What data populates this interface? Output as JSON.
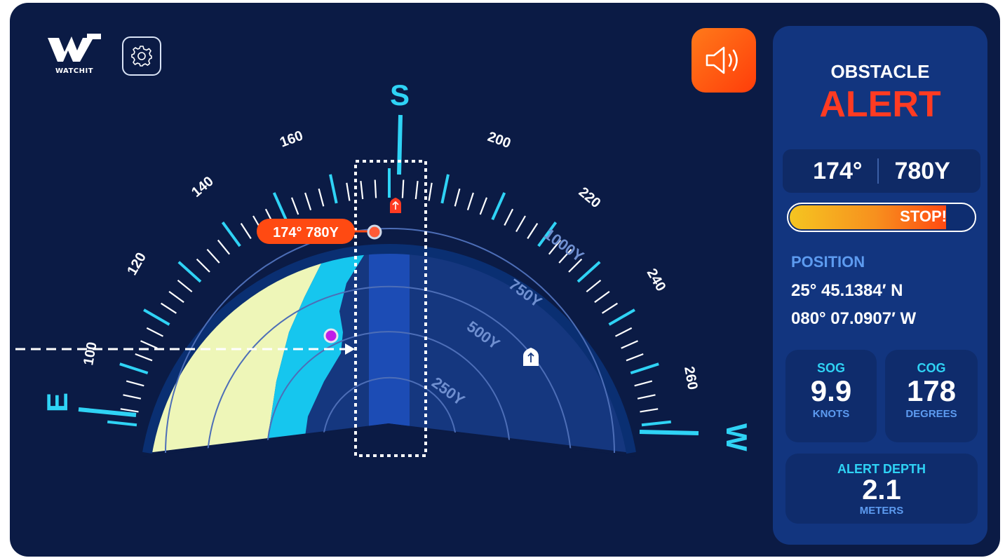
{
  "brand": {
    "logo_text": "WATCHIT"
  },
  "compass": {
    "cardinals": {
      "south": "S",
      "east": "E",
      "west": "W"
    },
    "tick_labels": [
      "100",
      "120",
      "140",
      "160",
      "200",
      "220",
      "240",
      "260"
    ],
    "range_labels": [
      "250Y",
      "500Y",
      "750Y",
      "1000Y"
    ],
    "obstacle_tag": "174° 780Y"
  },
  "panel": {
    "title": "OBSTACLE",
    "alert": "ALERT",
    "bearing": "174°",
    "distance": "780Y",
    "stop_label": "STOP!",
    "stop_level_fraction": 0.85,
    "position_label": "POSITION",
    "latitude": "25° 45.1384′ N",
    "longitude": "080° 07.0907′ W",
    "sog": {
      "label": "SOG",
      "value": "9.9",
      "unit": "KNOTS"
    },
    "cog": {
      "label": "COG",
      "value": "178",
      "unit": "DEGREES"
    },
    "alert_depth": {
      "label": "ALERT DEPTH",
      "value": "2.1",
      "unit": "METERS"
    }
  },
  "colors": {
    "background": "#0b1b45",
    "panel": "#12357f",
    "accent": "#2fd3f5",
    "alert": "#ff3b22",
    "land": "#eef6b8",
    "shallow": "#16c6ee"
  },
  "icons": [
    "watchit-logo-icon",
    "gear-icon",
    "speaker-icon",
    "boat-icon",
    "obstacle-marker-icon"
  ]
}
